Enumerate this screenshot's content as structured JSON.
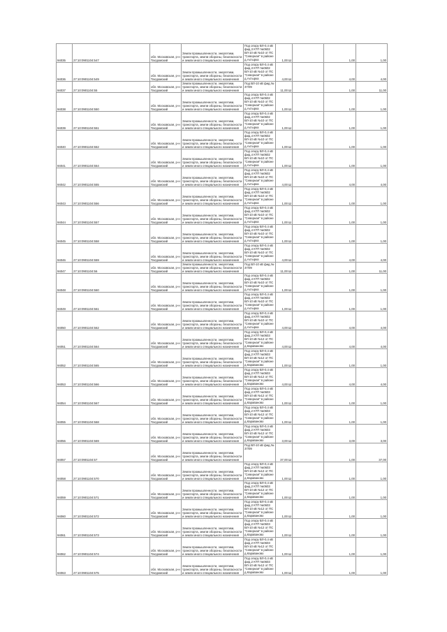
{
  "rows": [
    {
      "id": "94035",
      "cad": "27:10:0901104:547",
      "addr": "обл. Московская, р-н Талдомский",
      "cat": "Земли промышленности, энергетики, транспорта, земли обороны, безопасности и земли иного специального назначения",
      "desc": "Под опору ВЛ-0,4 кВ фид.3 КТП №0602 ВЛ-10 кВ №10 от ПС \"Северная\" в районе д.Ахтырка",
      "area": "1,00 Ш",
      "v1": "1,00",
      "v2": "1,00",
      "h": "tall"
    },
    {
      "id": "94036",
      "cad": "27:10:0901104:549",
      "addr": "обл. Московская, р-н Талдомский",
      "cat": "Земли промышленности, энергетики, транспорта, земли обороны, безопасности и земли иного специального назначения",
      "desc": "Под опору ВЛ-0,4 кВ фид.3 КТП №0602 ВЛ-10 кВ №10 от ПС \"Северная\" в районе д.Ахтырка",
      "area": "4,00 Ш",
      "v1": "4,00",
      "v2": "4,00",
      "h": "tall"
    },
    {
      "id": "94037",
      "cad": "27:10:0901104:55",
      "addr": "обл. Московская, р-н Талдомский",
      "cat": "Земли промышленности, энергетики, транспорта, земли обороны, безопасности и земли иного специального назначения",
      "desc": "Под ВЛ-10 кВ фид.№ 37/09",
      "area": "11,00 Ш",
      "v1": "1,00",
      "v2": "11,00",
      "h": "short"
    },
    {
      "id": "94038",
      "cad": "27:10:0901104:550",
      "addr": "обл. Московская, р-н Талдомский",
      "cat": "Земли промышленности, энергетики, транспорта, земли обороны, безопасности и земли иного специального назначения",
      "desc": "Под опору ВЛ-0,4 кВ фид.4 КТП №0602 ВЛ-10 кВ №10 от ПС \"Северная\" в районе д.Ахтырка",
      "area": "1,00 Ш",
      "v1": "1,00",
      "v2": "1,00",
      "h": "tall"
    },
    {
      "id": "94039",
      "cad": "27:10:0901104:551",
      "addr": "обл. Московская, р-н Талдомский",
      "cat": "Земли промышленности, энергетики, транспорта, земли обороны, безопасности и земли иного специального назначения",
      "desc": "Под опору ВЛ-0,4 кВ фид.4 КТП №0602 ВЛ-10 кВ №10 от ПС \"Северная\" в районе д.Ахтырка",
      "area": "1,00 Ш",
      "v1": "1,00",
      "v2": "1,00",
      "h": "tall"
    },
    {
      "id": "94040",
      "cad": "27:10:0901104:552",
      "addr": "обл. Московская, р-н Талдомский",
      "cat": "Земли промышленности, энергетики, транспорта, земли обороны, безопасности и земли иного специального назначения",
      "desc": "Под опору ВЛ-0,4 кВ фид.4 КТП №0602 ВЛ-10 кВ №10 от ПС \"Северная\" в районе д.Ахтырка",
      "area": "1,00 Ш",
      "v1": "1,00",
      "v2": "1,00",
      "h": "tall"
    },
    {
      "id": "94041",
      "cad": "27:10:0901104:554",
      "addr": "обл. Московская, р-н Талдомский",
      "cat": "Земли промышленности, энергетики, транспорта, земли обороны, безопасности и земли иного специального назначения",
      "desc": "Под опору ВЛ-0,4 кВ фид.4 КТП №0602 ВЛ-10 кВ №10 от ПС \"Северная\" в районе д.Ахтырка",
      "area": "1,00 Ш",
      "v1": "1,00",
      "v2": "1,00",
      "h": "tall"
    },
    {
      "id": "94042",
      "cad": "27:10:0901104:555",
      "addr": "обл. Московская, р-н Талдомский",
      "cat": "Земли промышленности, энергетики, транспорта, земли обороны, безопасности и земли иного специального назначения",
      "desc": "Под опору ВЛ-0,4 кВ фид.4 КТП №0602 ВЛ-10 кВ №10 от ПС \"Северная\" в районе д.Ахтырка",
      "area": "4,00 Ш",
      "v1": "4,00",
      "v2": "4,00",
      "h": "tall"
    },
    {
      "id": "94043",
      "cad": "27:10:0901104:556",
      "addr": "обл. Московская, р-н Талдомский",
      "cat": "Земли промышленности, энергетики, транспорта, земли обороны, безопасности и земли иного специального назначения",
      "desc": "Под опору ВЛ-0,4 кВ фид.4 КТП №0602 ВЛ-10 кВ №10 от ПС \"Северная\" в районе д.Ахтырка",
      "area": "1,00 Ш",
      "v1": "1,00",
      "v2": "1,00",
      "h": "tall"
    },
    {
      "id": "94044",
      "cad": "27:10:0901104:557",
      "addr": "обл. Московская, р-н Талдомский",
      "cat": "Земли промышленности, энергетики, транспорта, земли обороны, безопасности и земли иного специального назначения",
      "desc": "Под опору ВЛ-0,4 кВ фид.4 КТП №0602 ВЛ-10 кВ №10 от ПС \"Северная\" в районе д.Ахтырка",
      "area": "1,00 Ш",
      "v1": "1,00",
      "v2": "1,00",
      "h": "tall"
    },
    {
      "id": "94045",
      "cad": "27:10:0901104:558",
      "addr": "обл. Московская, р-н Талдомский",
      "cat": "Земли промышленности, энергетики, транспорта, земли обороны, безопасности и земли иного специального назначения",
      "desc": "Под опору ВЛ-0,4 кВ фид.4 КТП №0602 ВЛ-10 кВ №10 от ПС \"Северная\" в районе д.Ахтырка",
      "area": "1,00 Ш",
      "v1": "1,00",
      "v2": "1,00",
      "h": "tall"
    },
    {
      "id": "94046",
      "cad": "27:10:0901104:559",
      "addr": "обл. Московская, р-н Талдомский",
      "cat": "Земли промышленности, энергетики, транспорта, земли обороны, безопасности и земли иного специального назначения",
      "desc": "Под опору ВЛ-0,4 кВ фид.4 КТП №0602 ВЛ-10 кВ №10 от ПС \"Северная\" в районе д.Ахтырка",
      "area": "4,00 Ш",
      "v1": "4,00",
      "v2": "4,00",
      "h": "tall"
    },
    {
      "id": "94047",
      "cad": "27:10:0901104:56",
      "addr": "обл. Московская, р-н Талдомский",
      "cat": "Земли промышленности, энергетики, транспорта, земли обороны, безопасности и земли иного специального назначения",
      "desc": "Под ВЛ-10 кВ фид.№ 37/09",
      "area": "11,00 Ш",
      "v1": "1,00",
      "v2": "11,00",
      "h": "short"
    },
    {
      "id": "94048",
      "cad": "27:10:0901104:560",
      "addr": "обл. Московская, р-н Талдомский",
      "cat": "Земли промышленности, энергетики, транспорта, земли обороны, безопасности и земли иного специального назначения",
      "desc": "Под опору ВЛ-0,4 кВ фид.4 КТП №0602 ВЛ-10 кВ №10 от ПС \"Северная\" в районе д.Ахтырка",
      "area": "1,00 Ш",
      "v1": "1,00",
      "v2": "1,00",
      "h": "tall"
    },
    {
      "id": "94049",
      "cad": "27:10:0901104:561",
      "addr": "обл. Московская, р-н Талдомский",
      "cat": "Земли промышленности, энергетики, транспорта, земли обороны, безопасности и земли иного специального назначения",
      "desc": "Под опору ВЛ-0,4 кВ фид.4 КТП №0602 ВЛ-10 кВ №10 от ПС \"Северная\" в районе д.Ахтырка",
      "area": "1,00 Ш",
      "v1": "1,00",
      "v2": "1,00",
      "h": "tall"
    },
    {
      "id": "94050",
      "cad": "27:10:0901104:562",
      "addr": "обл. Московская, р-н Талдомский",
      "cat": "Земли промышленности, энергетики, транспорта, земли обороны, безопасности и земли иного специального назначения",
      "desc": "Под опору ВЛ-0,4 кВ фид.4 КТП №0602 ВЛ-10 кВ №10 от ПС \"Северная\" в районе д.Ахтырка",
      "area": "4,00 Ш",
      "v1": "4,00",
      "v2": "4,00",
      "h": "tall"
    },
    {
      "id": "94051",
      "cad": "27:10:0901104:564",
      "addr": "обл. Московская, р-н Талдомский",
      "cat": "Земли промышленности, энергетики, транспорта, земли обороны, безопасности и земли иного специального назначения",
      "desc": "Под опору ВЛ-0,4 кВ фид.2 КТП №0603 ВЛ-10 кВ №12 от ПС \"Северная\" в районе д.Караваново",
      "area": "4,00 Ш",
      "v1": "4,00",
      "v2": "4,00",
      "h": "tall"
    },
    {
      "id": "94052",
      "cad": "27:10:0901104:565",
      "addr": "обл. Московская, р-н Талдомский",
      "cat": "Земли промышленности, энергетики, транспорта, земли обороны, безопасности и земли иного специального назначения",
      "desc": "Под опору ВЛ-0,4 кВ фид.2 КТП №0603 ВЛ-10 кВ №12 от ПС \"Северная\" в районе д.Караваново",
      "area": "1,00 Ш",
      "v1": "1,00",
      "v2": "1,00",
      "h": "tall"
    },
    {
      "id": "94053",
      "cad": "27:10:0901104:566",
      "addr": "обл. Московская, р-н Талдомский",
      "cat": "Земли промышленности, энергетики, транспорта, земли обороны, безопасности и земли иного специального назначения",
      "desc": "Под опору ВЛ-0,4 кВ фид.2 КТП №0603 ВЛ-10 кВ №12 от ПС \"Северная\" в районе д.Караваново",
      "area": "4,00 Ш",
      "v1": "4,00",
      "v2": "4,00",
      "h": "tall"
    },
    {
      "id": "94054",
      "cad": "27:10:0901104:567",
      "addr": "обл. Московская, р-н Талдомский",
      "cat": "Земли промышленности, энергетики, транспорта, земли обороны, безопасности и земли иного специального назначения",
      "desc": "Под опору ВЛ-0,4 кВ фид.2 КТП №0603 ВЛ-10 кВ №12 от ПС \"Северная\" в районе д.Караваново",
      "area": "1,00 Ш",
      "v1": "1,00",
      "v2": "1,00",
      "h": "tall"
    },
    {
      "id": "94055",
      "cad": "27:10:0901104:568",
      "addr": "обл. Московская, р-н Талдомский",
      "cat": "Земли промышленности, энергетики, транспорта, земли обороны, безопасности и земли иного специального назначения",
      "desc": "Под опору ВЛ-0,4 кВ фид.2 КТП №0603 ВЛ-10 кВ №12 от ПС \"Северная\" в районе д.Караваново",
      "area": "1,00 Ш",
      "v1": "1,00",
      "v2": "1,00",
      "h": "tall"
    },
    {
      "id": "94056",
      "cad": "27:10:0901104:569",
      "addr": "обл. Московская, р-н Талдомский",
      "cat": "Земли промышленности, энергетики, транспорта, земли обороны, безопасности и земли иного специального назначения",
      "desc": "Под опору ВЛ-0,4 кВ фид.2 КТП №0603 ВЛ-10 кВ №12 от ПС \"Северная\" в районе д.Караваново",
      "area": "3,00 Ш",
      "v1": "3,00",
      "v2": "3,00",
      "h": "tall"
    },
    {
      "id": "94057",
      "cad": "27:10:0901104:57",
      "addr": "обл. Московская, р-н Талдомский",
      "cat": "Земли промышленности, энергетики, транспорта, земли обороны, безопасности и земли иного специального назначения",
      "desc": "Под ВЛ-10 кВ фид.№ 37/09",
      "area": "37,00 Ш",
      "v1": "1,00",
      "v2": "37,00",
      "h": "tall"
    },
    {
      "id": "94058",
      "cad": "27:10:0901104:570",
      "addr": "обл. Московская, р-н Талдомский",
      "cat": "Земли промышленности, энергетики, транспорта, земли обороны, безопасности и земли иного специального назначения",
      "desc": "Под опору ВЛ-0,4 кВ фид.2 КТП №0603 ВЛ-10 кВ №12 от ПС \"Северная\" в районе д.Караваново",
      "area": "1,00 Ш",
      "v1": "1,00",
      "v2": "1,00",
      "h": "tall"
    },
    {
      "id": "94059",
      "cad": "27:10:0901104:571",
      "addr": "обл. Московская, р-н Талдомский",
      "cat": "Земли промышленности, энергетики, транспорта, земли обороны, безопасности и земли иного специального назначения",
      "desc": "Под опору ВЛ-0,4 кВ фид.2 КТП №0603 ВЛ-10 кВ №12 от ПС \"Северная\" в районе д.Караваново",
      "area": "1,00 Ш",
      "v1": "1,00",
      "v2": "1,00",
      "h": "tall"
    },
    {
      "id": "94060",
      "cad": "27:10:0901104:572",
      "addr": "обл. Московская, р-н Талдомский",
      "cat": "Земли промышленности, энергетики, транспорта, земли обороны, безопасности и земли иного специального назначения",
      "desc": "Под опору ВЛ-0,4 кВ фид.2 КТП №0603 ВЛ-10 кВ №12 от ПС \"Северная\" в районе д.Караваново",
      "area": "1,00 Ш",
      "v1": "1,00",
      "v2": "1,00",
      "h": "tall"
    },
    {
      "id": "94061",
      "cad": "27:10:0901104:573",
      "addr": "обл. Московская, р-н Талдомский",
      "cat": "Земли промышленности, энергетики, транспорта, земли обороны, безопасности и земли иного специального назначения",
      "desc": "Под опору ВЛ-0,4 кВ фид.2 КТП №0603 ВЛ-10 кВ №12 от ПС \"Северная\" в районе д.Караваново",
      "area": "1,00 Ш",
      "v1": "1,00",
      "v2": "1,00",
      "h": "tall"
    },
    {
      "id": "94062",
      "cad": "27:10:0901104:574",
      "addr": "обл. Московская, р-н Талдомский",
      "cat": "Земли промышленности, энергетики, транспорта, земли обороны, безопасности и земли иного специального назначения",
      "desc": "Под опору ВЛ-0,4 кВ фид.2 КТП №0603 ВЛ-10 кВ №12 от ПС \"Северная\" в районе д.Караваново",
      "area": "1,00 Ш",
      "v1": "1,00",
      "v2": "1,00",
      "h": "tall"
    },
    {
      "id": "94063",
      "cad": "27:10:0901104:575",
      "addr": "обл. Московская, р-н Талдомский",
      "cat": "Земли промышленности, энергетики, транспорта, земли обороны, безопасности и земли иного специального назначения",
      "desc": "Под опору ВЛ-0,4 кВ фид.2 КТП №0603 ВЛ-10 кВ №12 от ПС \"Северная\" в районе д.Караваново",
      "area": "1,00 Ш",
      "v1": "1,00",
      "v2": "1,00",
      "h": "tall"
    }
  ]
}
